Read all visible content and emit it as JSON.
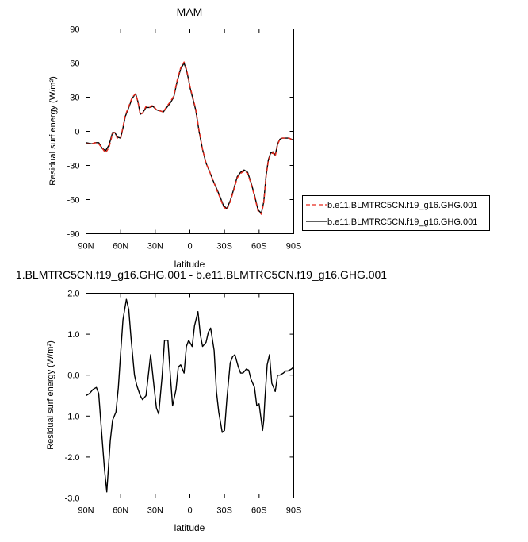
{
  "chart_data": [
    {
      "type": "line",
      "title": "MAM",
      "xlabel": "latitude",
      "ylabel": "Residual surf energy (W/m²)",
      "xlim": [
        90,
        -90
      ],
      "ylim": [
        -90,
        90
      ],
      "x_ticks": [
        90,
        60,
        30,
        0,
        -30,
        -60,
        -90
      ],
      "x_tick_labels": [
        "90N",
        "60N",
        "30N",
        "0",
        "30S",
        "60S",
        "90S"
      ],
      "y_ticks": [
        90,
        60,
        30,
        0,
        -30,
        -60,
        -90
      ],
      "y_tick_labels": [
        "90",
        "60",
        "30",
        "0",
        "-30",
        "-60",
        "-90"
      ],
      "legend_position": "right",
      "x": [
        90,
        85,
        82,
        79,
        76,
        73,
        70,
        67,
        65,
        63,
        60,
        58,
        56,
        53,
        50,
        47,
        45,
        43,
        41,
        38,
        35,
        32,
        29,
        26,
        23,
        20,
        17,
        14,
        11,
        8,
        5,
        3,
        1,
        0,
        -2,
        -5,
        -8,
        -11,
        -14,
        -17,
        -20,
        -23,
        -26,
        -29,
        -32,
        -35,
        -38,
        -41,
        -44,
        -47,
        -50,
        -53,
        -56,
        -59,
        -62,
        -64,
        -66,
        -68,
        -70,
        -72,
        -74,
        -76,
        -78,
        -80,
        -83,
        -86,
        -90
      ],
      "series": [
        {
          "name": "b.e11.BLMTRC5CN.f19_g16.GHG.001",
          "color": "#e8291c",
          "dash": true,
          "values": [
            -11,
            -11,
            -10,
            -11,
            -15,
            -19,
            -14,
            -2,
            -1,
            -6,
            -6,
            4,
            14,
            22,
            30,
            33,
            26,
            15,
            16,
            22,
            21,
            23,
            19,
            18,
            17,
            22,
            26,
            31,
            45,
            56,
            61,
            55,
            46,
            40,
            32,
            20,
            1,
            -16,
            -28,
            -35,
            -43,
            -51,
            -58,
            -66,
            -69,
            -62,
            -52,
            -41,
            -37,
            -35,
            -37,
            -46,
            -57,
            -70,
            -73,
            -63,
            -40,
            -26,
            -20,
            -19,
            -22,
            -12,
            -7,
            -6,
            -6,
            -6,
            -8
          ]
        },
        {
          "name": "b.e11.BLMTRC5CN.f19_g16.GHG.001",
          "color": "#000000",
          "dash": false,
          "values": [
            -10,
            -11,
            -10,
            -10,
            -15,
            -17,
            -12,
            -1,
            -1,
            -5,
            -6,
            3,
            13,
            21,
            29,
            33,
            26,
            15,
            16,
            21,
            21,
            22,
            19,
            18,
            17,
            21,
            25,
            30,
            44,
            55,
            60,
            54,
            45,
            39,
            31,
            19,
            0,
            -16,
            -28,
            -35,
            -43,
            -50,
            -57,
            -65,
            -68,
            -61,
            -51,
            -40,
            -36,
            -34,
            -36,
            -45,
            -56,
            -69,
            -72,
            -62,
            -39,
            -25,
            -19,
            -18,
            -21,
            -11,
            -7,
            -6,
            -6,
            -6,
            -8
          ]
        }
      ]
    },
    {
      "type": "line",
      "title": "1.BLMTRC5CN.f19_g16.GHG.001 - b.e11.BLMTRC5CN.f19_g16.GHG.001",
      "xlabel": "latitude",
      "ylabel": "Residual surf energy (W/m²)",
      "xlim": [
        90,
        -90
      ],
      "ylim": [
        -3,
        2
      ],
      "x_ticks": [
        90,
        60,
        30,
        0,
        -30,
        -60,
        -90
      ],
      "x_tick_labels": [
        "90N",
        "60N",
        "30N",
        "0",
        "30S",
        "60S",
        "90S"
      ],
      "y_ticks": [
        2,
        1,
        0,
        -1,
        -2,
        -3
      ],
      "y_tick_labels": [
        "2.0",
        "1.0",
        "0.0",
        "-1.0",
        "-2.0",
        "-3.0"
      ],
      "x": [
        90,
        87,
        84,
        81,
        79,
        77,
        74,
        72,
        69,
        67,
        64,
        62,
        60,
        58,
        55,
        53,
        51,
        48,
        46,
        43,
        41,
        38,
        36,
        34,
        31,
        29,
        27,
        24,
        22,
        19,
        17,
        15,
        12,
        10,
        8,
        5,
        3,
        1,
        -2,
        -4,
        -7,
        -9,
        -11,
        -14,
        -16,
        -18,
        -21,
        -23,
        -25,
        -28,
        -30,
        -32,
        -35,
        -37,
        -39,
        -42,
        -44,
        -46,
        -49,
        -51,
        -53,
        -56,
        -58,
        -60,
        -63,
        -64,
        -65,
        -67,
        -69,
        -71,
        -74,
        -76,
        -78,
        -81,
        -83,
        -85,
        -88,
        -90
      ],
      "series": [
        {
          "name": "",
          "color": "#000000",
          "dash": false,
          "values": [
            -0.5,
            -0.45,
            -0.35,
            -0.3,
            -0.45,
            -1.2,
            -2.3,
            -2.85,
            -1.6,
            -1.1,
            -0.9,
            -0.3,
            0.55,
            1.35,
            1.85,
            1.6,
            0.9,
            0.0,
            -0.25,
            -0.5,
            -0.6,
            -0.5,
            0.0,
            0.5,
            -0.3,
            -0.8,
            -0.95,
            0.0,
            0.85,
            0.85,
            0.0,
            -0.75,
            -0.35,
            0.2,
            0.25,
            0.05,
            0.7,
            0.85,
            0.7,
            1.2,
            1.55,
            1.0,
            0.7,
            0.8,
            1.05,
            1.15,
            0.6,
            -0.4,
            -0.9,
            -1.4,
            -1.35,
            -0.6,
            0.3,
            0.45,
            0.5,
            0.2,
            0.05,
            0.05,
            0.15,
            0.12,
            -0.1,
            -0.3,
            -0.75,
            -0.7,
            -1.35,
            -1.1,
            -0.6,
            0.25,
            0.5,
            -0.2,
            -0.4,
            0.0,
            0.0,
            0.05,
            0.1,
            0.1,
            0.15,
            0.2
          ]
        }
      ]
    }
  ]
}
